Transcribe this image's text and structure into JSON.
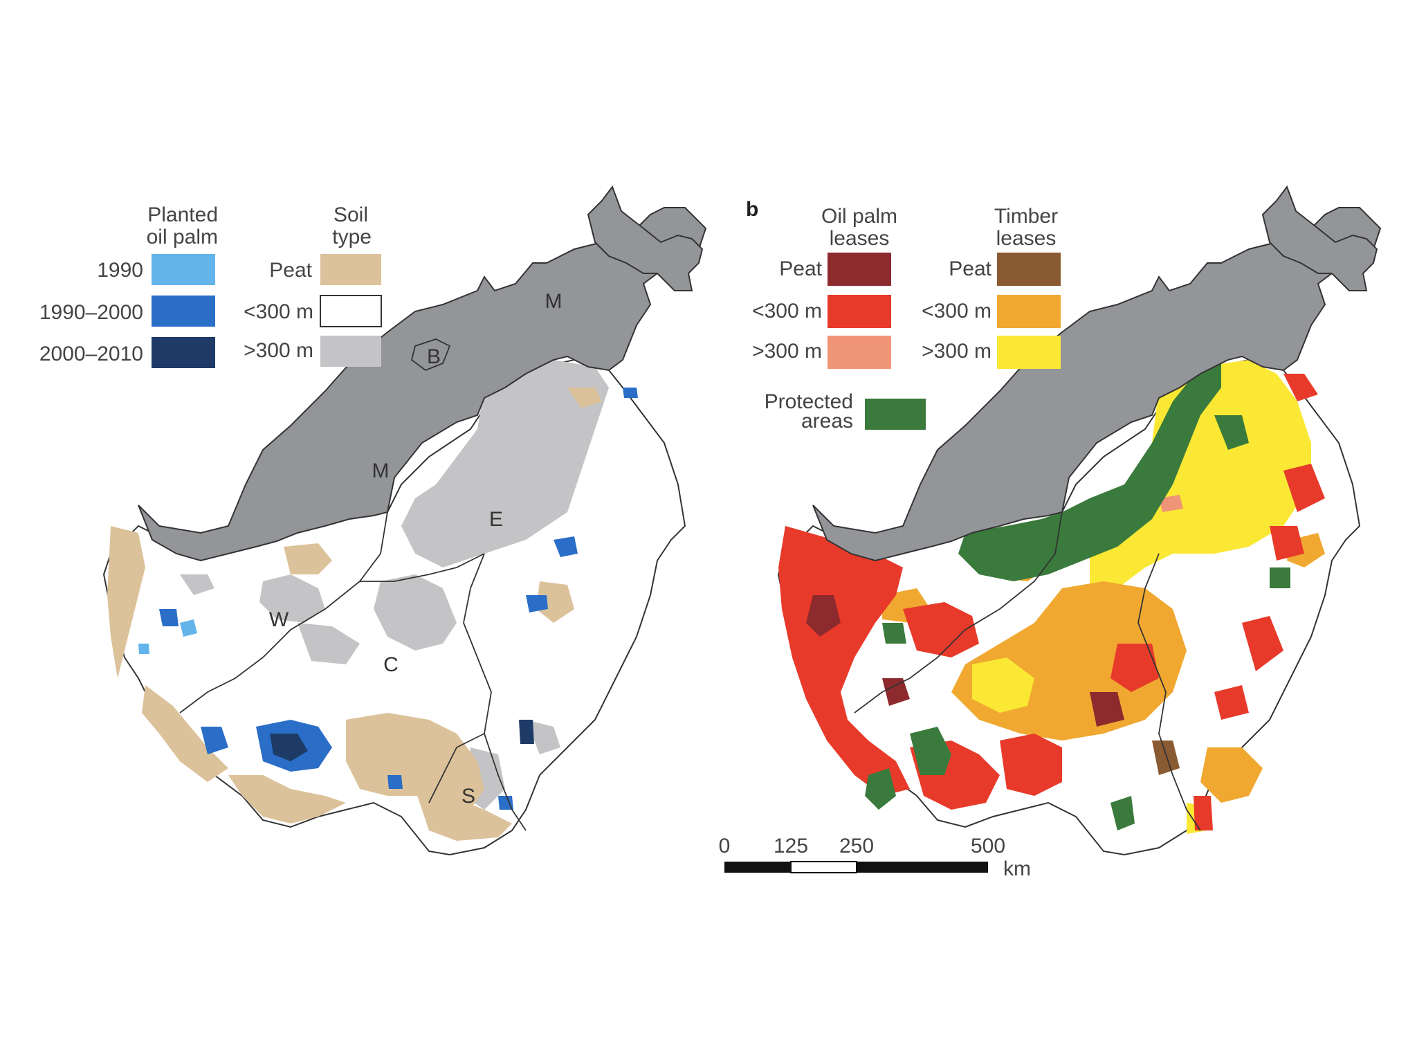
{
  "panel_a": {
    "legend_left": {
      "title_line1": "Planted",
      "title_line2": "oil palm",
      "items": [
        {
          "label": "1990",
          "color": "#63b4ea"
        },
        {
          "label": "1990–2000",
          "color": "#2a6ec8"
        },
        {
          "label": "2000–2010",
          "color": "#1d3b66"
        }
      ]
    },
    "legend_right": {
      "title_line1": "Soil",
      "title_line2": "type",
      "items": [
        {
          "label": "Peat",
          "color": "#dcc29a"
        },
        {
          "label": "<300 m",
          "color": "#ffffff"
        },
        {
          "label": ">300 m",
          "color": "#c4c4c6"
        }
      ]
    },
    "regions": {
      "malaysia_north": "M",
      "brunei": "B",
      "malaysia_west": "M",
      "east": "E",
      "west": "W",
      "central": "C",
      "south": "S"
    }
  },
  "panel_b": {
    "letter": "b",
    "legend_oil": {
      "title_line1": "Oil palm",
      "title_line2": "leases",
      "items": [
        {
          "label": "Peat",
          "color": "#8c2a2e"
        },
        {
          "label": "<300 m",
          "color": "#e83a2a"
        },
        {
          "label": ">300 m",
          "color": "#f09478"
        }
      ]
    },
    "legend_timber": {
      "title_line1": "Timber",
      "title_line2": "leases",
      "items": [
        {
          "label": "Peat",
          "color": "#8a5a32"
        },
        {
          "label": "<300 m",
          "color": "#f0a830"
        },
        {
          "label": ">300 m",
          "color": "#fae834"
        }
      ]
    },
    "protected": {
      "line1": "Protected",
      "line2": "areas",
      "color": "#3a7a3c"
    },
    "scale": {
      "ticks": [
        "0",
        "125",
        "250",
        "500"
      ],
      "unit": "km"
    }
  },
  "colors": {
    "malaysia": "#939598",
    "outline": "#333333"
  }
}
